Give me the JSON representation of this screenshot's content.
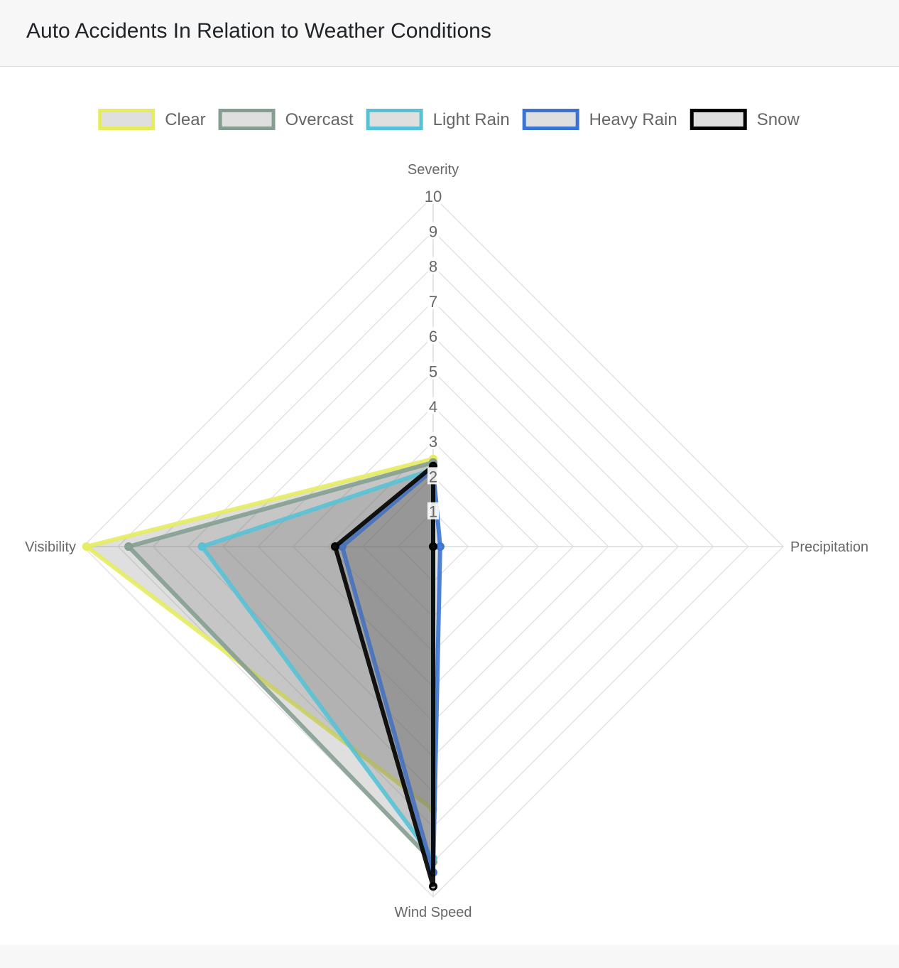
{
  "header": {
    "title": "Auto Accidents In Relation to Weather Conditions"
  },
  "chart_data": {
    "type": "radar",
    "axes": [
      "Severity",
      "Precipitation",
      "Wind Speed",
      "Visibility"
    ],
    "rmin": 0,
    "rmax": 10,
    "ticks": [
      1,
      2,
      3,
      4,
      5,
      6,
      7,
      8,
      9,
      10
    ],
    "grid": true,
    "legend_position": "top",
    "series": [
      {
        "name": "Clear",
        "color": "#e6ec60",
        "values": [
          2.5,
          0.0,
          7.5,
          9.9
        ]
      },
      {
        "name": "Overcast",
        "color": "#859e91",
        "values": [
          2.4,
          0.0,
          9.0,
          8.7
        ]
      },
      {
        "name": "Light Rain",
        "color": "#56c2d6",
        "values": [
          2.2,
          0.0,
          8.9,
          6.6
        ]
      },
      {
        "name": "Heavy Rain",
        "color": "#3b73d4",
        "values": [
          2.2,
          0.2,
          9.3,
          2.6
        ]
      },
      {
        "name": "Snow",
        "color": "#000000",
        "values": [
          2.3,
          0.0,
          9.7,
          2.8
        ]
      }
    ]
  }
}
